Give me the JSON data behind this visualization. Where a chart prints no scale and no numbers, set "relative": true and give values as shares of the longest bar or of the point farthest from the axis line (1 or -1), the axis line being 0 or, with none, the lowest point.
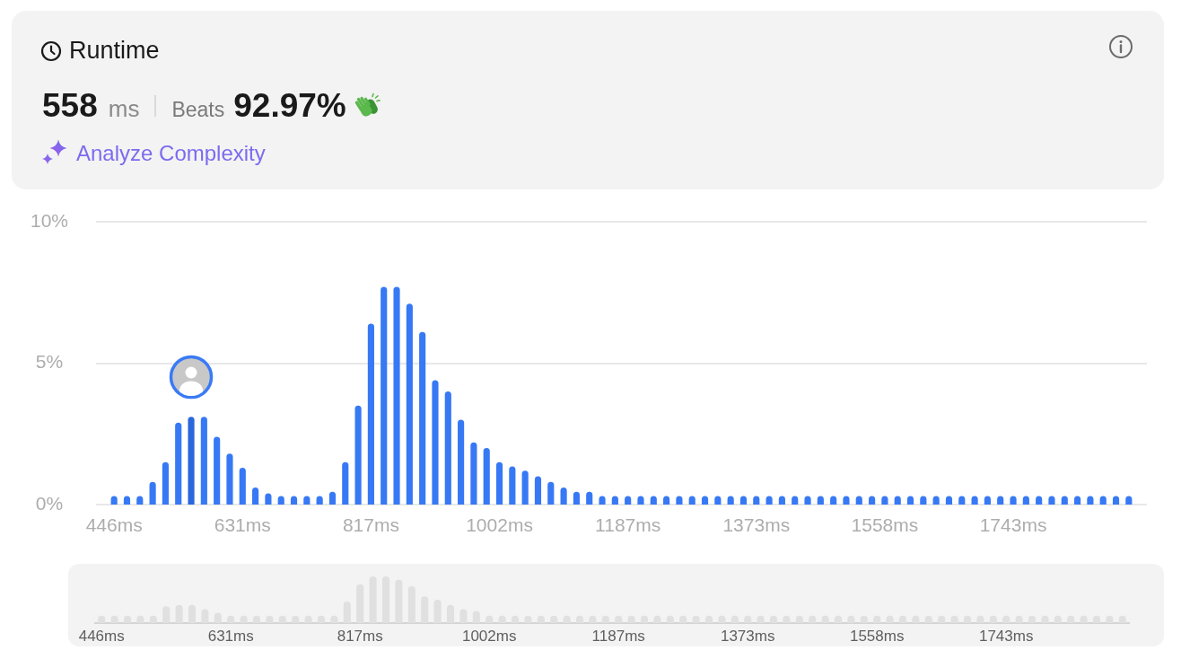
{
  "chart_data": [
    {
      "type": "bar",
      "title": "Runtime",
      "annotations": [
        "558",
        "ms",
        "Beats",
        "92.97%",
        "Analyze Complexity"
      ],
      "categories": [
        "446ms",
        null,
        null,
        null,
        null,
        null,
        null,
        null,
        null,
        null,
        "631ms",
        null,
        null,
        null,
        null,
        null,
        null,
        null,
        null,
        null,
        "817ms",
        null,
        null,
        null,
        null,
        null,
        null,
        null,
        null,
        null,
        "1002ms",
        null,
        null,
        null,
        null,
        null,
        null,
        null,
        null,
        null,
        "1187ms",
        null,
        null,
        null,
        null,
        null,
        null,
        null,
        null,
        null,
        "1373ms",
        null,
        null,
        null,
        null,
        null,
        null,
        null,
        null,
        null,
        "1558ms",
        null,
        null,
        null,
        null,
        null,
        null,
        null,
        null,
        null,
        "1743ms",
        null,
        null,
        null,
        null,
        null,
        null,
        null,
        null,
        null
      ],
      "values": [
        0.3,
        0.3,
        0.3,
        0.8,
        1.5,
        2.9,
        3.1,
        3.1,
        2.4,
        1.8,
        1.3,
        0.6,
        0.4,
        0.3,
        0.3,
        0.3,
        0.3,
        0.45,
        1.5,
        3.5,
        6.4,
        7.7,
        7.7,
        7.1,
        6.1,
        4.4,
        4,
        3,
        2.2,
        2,
        1.5,
        1.35,
        1.2,
        1,
        0.8,
        0.6,
        0.45,
        0.45,
        0.3,
        0.3,
        0.3,
        0.3,
        0.3,
        0.3,
        0.3,
        0.3,
        0.3,
        0.3,
        0.3,
        0.3,
        0.3,
        0.3,
        0.3,
        0.3,
        0.3,
        0.3,
        0.3,
        0.3,
        0.3,
        0.3,
        0.3,
        0.3,
        0.3,
        0.3,
        0.3,
        0.3,
        0.3,
        0.3,
        0.3,
        0.3,
        0.3,
        0.3,
        0.3,
        0.3,
        0.3,
        0.3,
        0.3,
        0.3,
        0.3,
        0.3
      ],
      "colors": [
        "#3779f5",
        "#3779f5",
        "#3779f5",
        "#3779f5",
        "#3779f5",
        "#3779f5",
        "#2a67dc",
        "#3779f5",
        "#3779f5",
        "#3779f5",
        "#3779f5",
        "#3779f5",
        "#3779f5",
        "#3779f5",
        "#3779f5",
        "#3779f5",
        "#3779f5",
        "#3779f5",
        "#3779f5",
        "#3779f5",
        "#3779f5",
        "#3779f5",
        "#3779f5",
        "#3779f5",
        "#3779f5",
        "#3779f5",
        "#3779f5",
        "#3779f5",
        "#3779f5",
        "#3779f5",
        "#3779f5",
        "#3779f5",
        "#3779f5",
        "#3779f5",
        "#3779f5",
        "#3779f5",
        "#3779f5",
        "#3779f5",
        "#3779f5",
        "#3779f5",
        "#3779f5",
        "#3779f5",
        "#3779f5",
        "#3779f5",
        "#3779f5",
        "#3779f5",
        "#3779f5",
        "#3779f5",
        "#3779f5",
        "#3779f5",
        "#3779f5",
        "#3779f5",
        "#3779f5",
        "#3779f5",
        "#3779f5",
        "#3779f5",
        "#3779f5",
        "#3779f5",
        "#3779f5",
        "#3779f5",
        "#3779f5",
        "#3779f5",
        "#3779f5",
        "#3779f5",
        "#3779f5",
        "#3779f5",
        "#3779f5",
        "#3779f5",
        "#3779f5",
        "#3779f5",
        "#3779f5",
        "#3779f5",
        "#3779f5",
        "#3779f5",
        "#3779f5",
        "#3779f5",
        "#3779f5",
        "#3779f5",
        "#3779f5",
        "#3779f5"
      ],
      "ylim": [
        0,
        10
      ],
      "yticks": [
        {
          "value": 0,
          "label": "0%"
        },
        {
          "value": 5,
          "label": "5%"
        },
        {
          "value": 10,
          "label": "10%"
        }
      ],
      "grid": "y"
    },
    {
      "type": "bar",
      "relative": true,
      "categories": [
        "446ms",
        null,
        null,
        null,
        null,
        null,
        null,
        null,
        null,
        null,
        "631ms",
        null,
        null,
        null,
        null,
        null,
        null,
        null,
        null,
        null,
        "817ms",
        null,
        null,
        null,
        null,
        null,
        null,
        null,
        null,
        null,
        "1002ms",
        null,
        null,
        null,
        null,
        null,
        null,
        null,
        null,
        null,
        "1187ms",
        null,
        null,
        null,
        null,
        null,
        null,
        null,
        null,
        null,
        "1373ms",
        null,
        null,
        null,
        null,
        null,
        null,
        null,
        null,
        null,
        "1558ms",
        null,
        null,
        null,
        null,
        null,
        null,
        null,
        null,
        null,
        "1743ms",
        null,
        null,
        null,
        null,
        null,
        null,
        null,
        null,
        null
      ],
      "values": [
        0.16,
        0.16,
        0.16,
        0.16,
        0.16,
        0.36,
        0.39,
        0.39,
        0.3,
        0.22,
        0.16,
        0.16,
        0.16,
        0.16,
        0.16,
        0.16,
        0.16,
        0.16,
        0.16,
        0.46,
        0.83,
        1,
        1,
        0.93,
        0.79,
        0.57,
        0.5,
        0.39,
        0.3,
        0.26,
        0.16,
        0.16,
        0.16,
        0.16,
        0.16,
        0.16,
        0.16,
        0.16,
        0.16,
        0.16,
        0.16,
        0.16,
        0.16,
        0.16,
        0.16,
        0.16,
        0.16,
        0.16,
        0.16,
        0.16,
        0.16,
        0.16,
        0.16,
        0.16,
        0.16,
        0.16,
        0.16,
        0.16,
        0.16,
        0.16,
        0.16,
        0.16,
        0.16,
        0.16,
        0.16,
        0.16,
        0.16,
        0.16,
        0.16,
        0.16,
        0.16,
        0.16,
        0.16,
        0.16,
        0.16,
        0.16,
        0.16,
        0.16,
        0.16,
        0.16
      ],
      "color": "#e0e0e0"
    }
  ]
}
